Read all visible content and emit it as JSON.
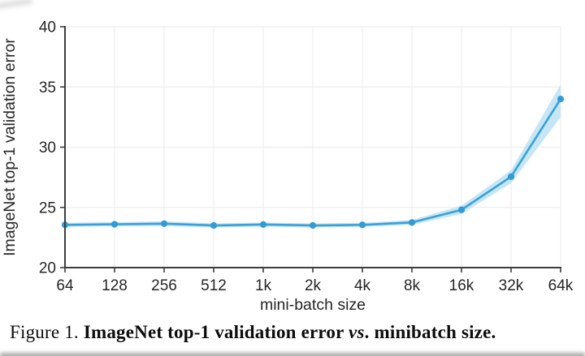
{
  "figure": {
    "caption": {
      "figure_label": "Figure 1.",
      "title_bold": "ImageNet top-1 validation error ",
      "vs_italic": "vs",
      "title_bold_2": ". minibatch size."
    }
  },
  "chart_data": {
    "type": "line",
    "title": "",
    "xlabel": "mini-batch size",
    "ylabel": "ImageNet top-1 validation error",
    "x_scale": "log2",
    "categories": [
      "64",
      "128",
      "256",
      "512",
      "1k",
      "2k",
      "4k",
      "8k",
      "16k",
      "32k",
      "64k"
    ],
    "x_values": [
      64,
      128,
      256,
      512,
      1024,
      2048,
      4096,
      8192,
      16384,
      32768,
      65536
    ],
    "y_ticks": [
      20,
      25,
      30,
      35,
      40
    ],
    "ylim": [
      20,
      40
    ],
    "grid": true,
    "legend": "none",
    "series": [
      {
        "name": "ImageNet top-1 validation error",
        "values": [
          23.55,
          23.6,
          23.65,
          23.5,
          23.58,
          23.5,
          23.55,
          23.75,
          24.8,
          27.55,
          34.0
        ],
        "band_low": [
          23.38,
          23.43,
          23.45,
          23.33,
          23.4,
          23.33,
          23.38,
          23.55,
          24.45,
          27.0,
          32.5
        ],
        "band_high": [
          23.72,
          23.77,
          23.85,
          23.67,
          23.75,
          23.67,
          23.72,
          23.95,
          25.15,
          28.1,
          35.2
        ]
      }
    ],
    "colors": {
      "line": "#3aa1d8",
      "marker": "#339bd4",
      "band": "#c6e6f5",
      "grid": "#efecec",
      "axis": "#3d3d3d",
      "tick_text": "#262626",
      "label_text": "#262626"
    }
  }
}
